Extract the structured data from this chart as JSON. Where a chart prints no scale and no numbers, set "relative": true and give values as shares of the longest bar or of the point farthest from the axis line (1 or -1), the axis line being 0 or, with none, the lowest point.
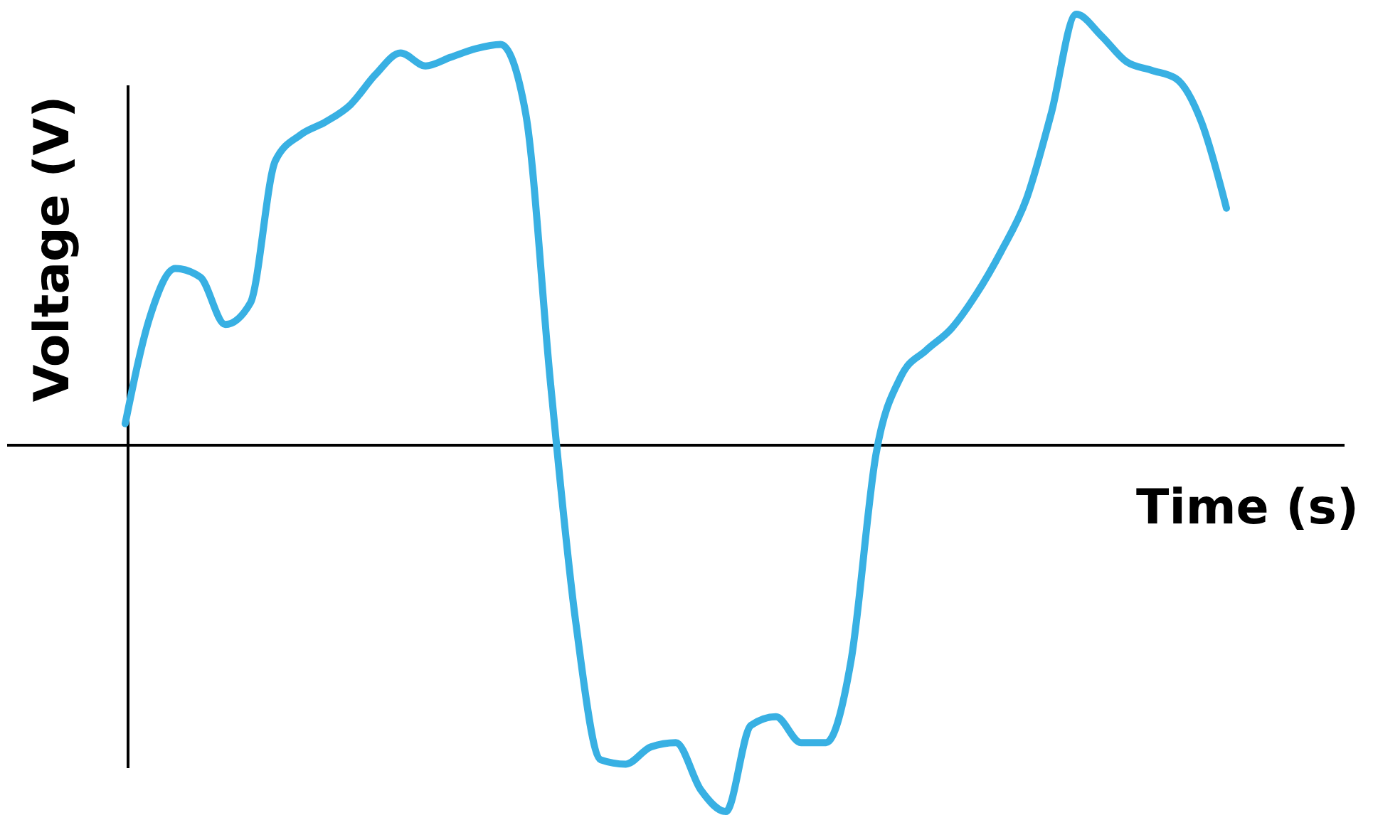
{
  "chart_data": {
    "type": "line",
    "xlabel": "Time (s)",
    "ylabel": "Voltage (V)",
    "relative": true,
    "categories": [
      null,
      null,
      null,
      null,
      null,
      null,
      null,
      null,
      null,
      null,
      null,
      null,
      null,
      null,
      null,
      null,
      null,
      null,
      null,
      null,
      null,
      null,
      null,
      null,
      null,
      null,
      null,
      null,
      null,
      null,
      null,
      null,
      null,
      null,
      null,
      null,
      null,
      null,
      null,
      null,
      null,
      null,
      null,
      null,
      null
    ],
    "series": [
      {
        "color": "#38b0e3",
        "values": [
          0.05,
          0.3,
          0.41,
          0.39,
          0.28,
          0.33,
          0.66,
          0.72,
          0.75,
          0.79,
          0.86,
          0.91,
          0.88,
          0.9,
          0.92,
          0.93,
          0.77,
          0.14,
          -0.41,
          -0.73,
          -0.74,
          -0.7,
          -0.69,
          -0.8,
          -0.85,
          -0.65,
          -0.63,
          -0.69,
          -0.69,
          -0.5,
          -0.02,
          0.16,
          0.22,
          0.27,
          0.35,
          0.45,
          0.57,
          0.77,
          1,
          0.95,
          0.89,
          0.87,
          0.85,
          0.75,
          0.55
        ]
      }
    ]
  }
}
